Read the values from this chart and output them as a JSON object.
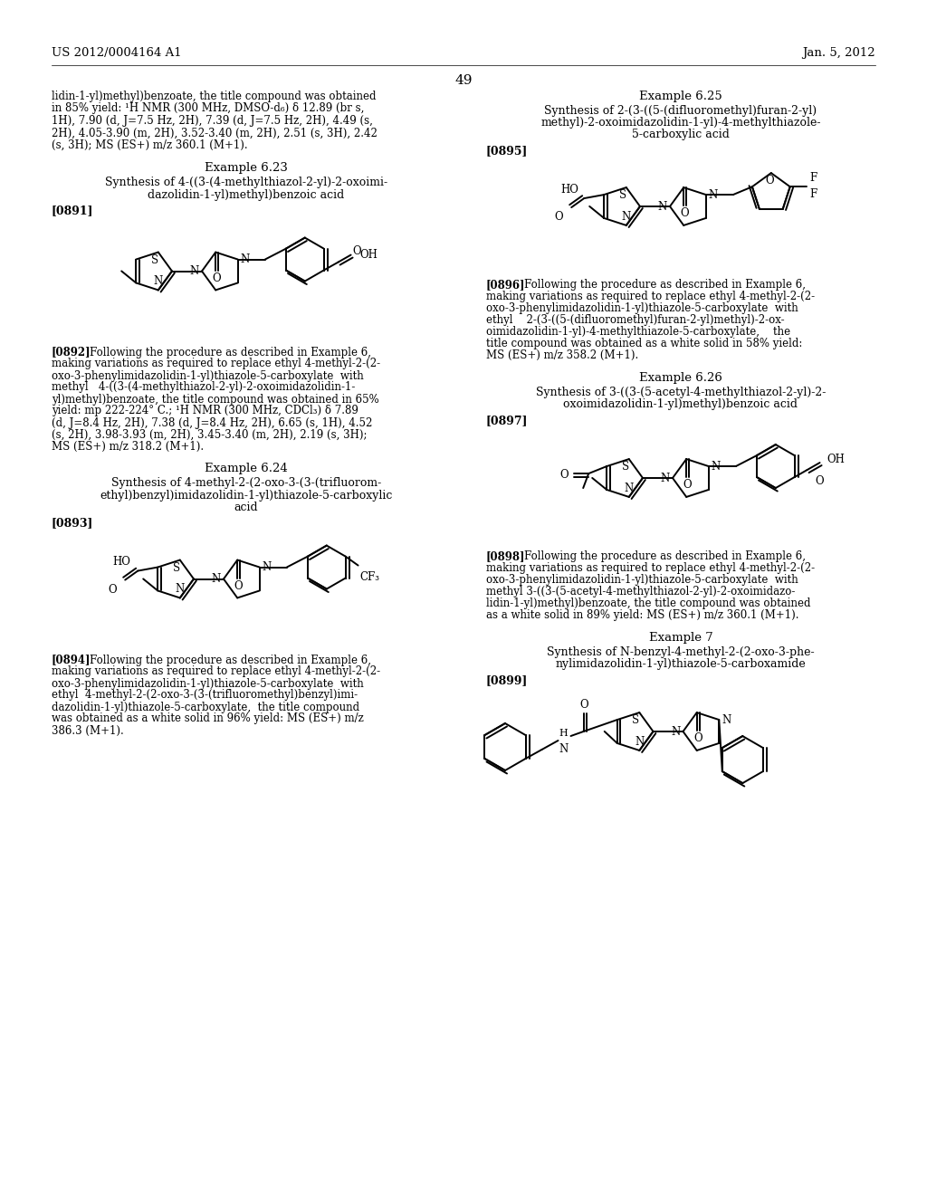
{
  "page_number": "49",
  "header_left": "US 2012/0004164 A1",
  "header_right": "Jan. 5, 2012",
  "bg": "#ffffff",
  "left_top_lines": [
    "lidin-1-yl)methyl)benzoate, the title compound was obtained",
    "in 85% yield: ¹H NMR (300 MHz, DMSO-d₆) δ 12.89 (br s,",
    "1H), 7.90 (d, J=7.5 Hz, 2H), 7.39 (d, J=7.5 Hz, 2H), 4.49 (s,",
    "2H), 4.05-3.90 (m, 2H), 3.52-3.40 (m, 2H), 2.51 (s, 3H), 2.42",
    "(s, 3H); MS (ES+) m/z 360.1 (M+1)."
  ],
  "ex623_head": "Example 6.23",
  "ex623_sub1": "Synthesis of 4-((3-(4-methylthiazol-2-yl)-2-oxoimi-",
  "ex623_sub2": "dazolidin-1-yl)methyl)benzoic acid",
  "ex623_par": "[0891]",
  "ex892_tag": "[0892]",
  "ex892_lines": [
    "Following the procedure as described in Example 6,",
    "making variations as required to replace ethyl 4-methyl-2-(2-",
    "oxo-3-phenylimidazolidin-1-yl)thiazole-5-carboxylate  with",
    "methyl   4-((3-(4-methylthiazol-2-yl)-2-oxoimidazolidin-1-",
    "yl)methyl)benzoate, the title compound was obtained in 65%",
    "yield: mp 222-224° C.; ¹H NMR (300 MHz, CDCl₃) δ 7.89",
    "(d, J=8.4 Hz, 2H), 7.38 (d, J=8.4 Hz, 2H), 6.65 (s, 1H), 4.52",
    "(s, 2H), 3.98-3.93 (m, 2H), 3.45-3.40 (m, 2H), 2.19 (s, 3H);",
    "MS (ES+) m/z 318.2 (M+1)."
  ],
  "ex624_head": "Example 6.24",
  "ex624_sub1": "Synthesis of 4-methyl-2-(2-oxo-3-(3-(trifluorom-",
  "ex624_sub2": "ethyl)benzyl)imidazolidin-1-yl)thiazole-5-carboxylic",
  "ex624_sub3": "acid",
  "ex624_par": "[0893]",
  "ex894_tag": "[0894]",
  "ex894_lines": [
    "Following the procedure as described in Example 6,",
    "making variations as required to replace ethyl 4-methyl-2-(2-",
    "oxo-3-phenylimidazolidin-1-yl)thiazole-5-carboxylate  with",
    "ethyl  4-methyl-2-(2-oxo-3-(3-(trifluoromethyl)benzyl)imi-",
    "dazolidin-1-yl)thiazole-5-carboxylate,  the title compound",
    "was obtained as a white solid in 96% yield: MS (ES+) m/z",
    "386.3 (M+1)."
  ],
  "ex625_head": "Example 6.25",
  "ex625_sub1": "Synthesis of 2-(3-((5-(difluoromethyl)furan-2-yl)",
  "ex625_sub2": "methyl)-2-oxoimidazolidin-1-yl)-4-methylthiazole-",
  "ex625_sub3": "5-carboxylic acid",
  "ex625_par": "[0895]",
  "ex896_tag": "[0896]",
  "ex896_lines": [
    "Following the procedure as described in Example 6,",
    "making variations as required to replace ethyl 4-methyl-2-(2-",
    "oxo-3-phenylimidazolidin-1-yl)thiazole-5-carboxylate  with",
    "ethyl    2-(3-((5-(difluoromethyl)furan-2-yl)methyl)-2-ox-",
    "oimidazolidin-1-yl)-4-methylthiazole-5-carboxylate,    the",
    "title compound was obtained as a white solid in 58% yield:",
    "MS (ES+) m/z 358.2 (M+1)."
  ],
  "ex626_head": "Example 6.26",
  "ex626_sub1": "Synthesis of 3-((3-(5-acetyl-4-methylthiazol-2-yl)-2-",
  "ex626_sub2": "oxoimidazolidin-1-yl)methyl)benzoic acid",
  "ex626_par": "[0897]",
  "ex898_tag": "[0898]",
  "ex898_lines": [
    "Following the procedure as described in Example 6,",
    "making variations as required to replace ethyl 4-methyl-2-(2-",
    "oxo-3-phenylimidazolidin-1-yl)thiazole-5-carboxylate  with",
    "methyl 3-((3-(5-acetyl-4-methylthiazol-2-yl)-2-oxoimidazo-",
    "lidin-1-yl)methyl)benzoate, the title compound was obtained",
    "as a white solid in 89% yield: MS (ES+) m/z 360.1 (M+1)."
  ],
  "ex7_head": "Example 7",
  "ex7_sub1": "Synthesis of N-benzyl-4-methyl-2-(2-oxo-3-phe-",
  "ex7_sub2": "nylimidazolidin-1-yl)thiazole-5-carboxamide",
  "ex7_par": "[0899]"
}
